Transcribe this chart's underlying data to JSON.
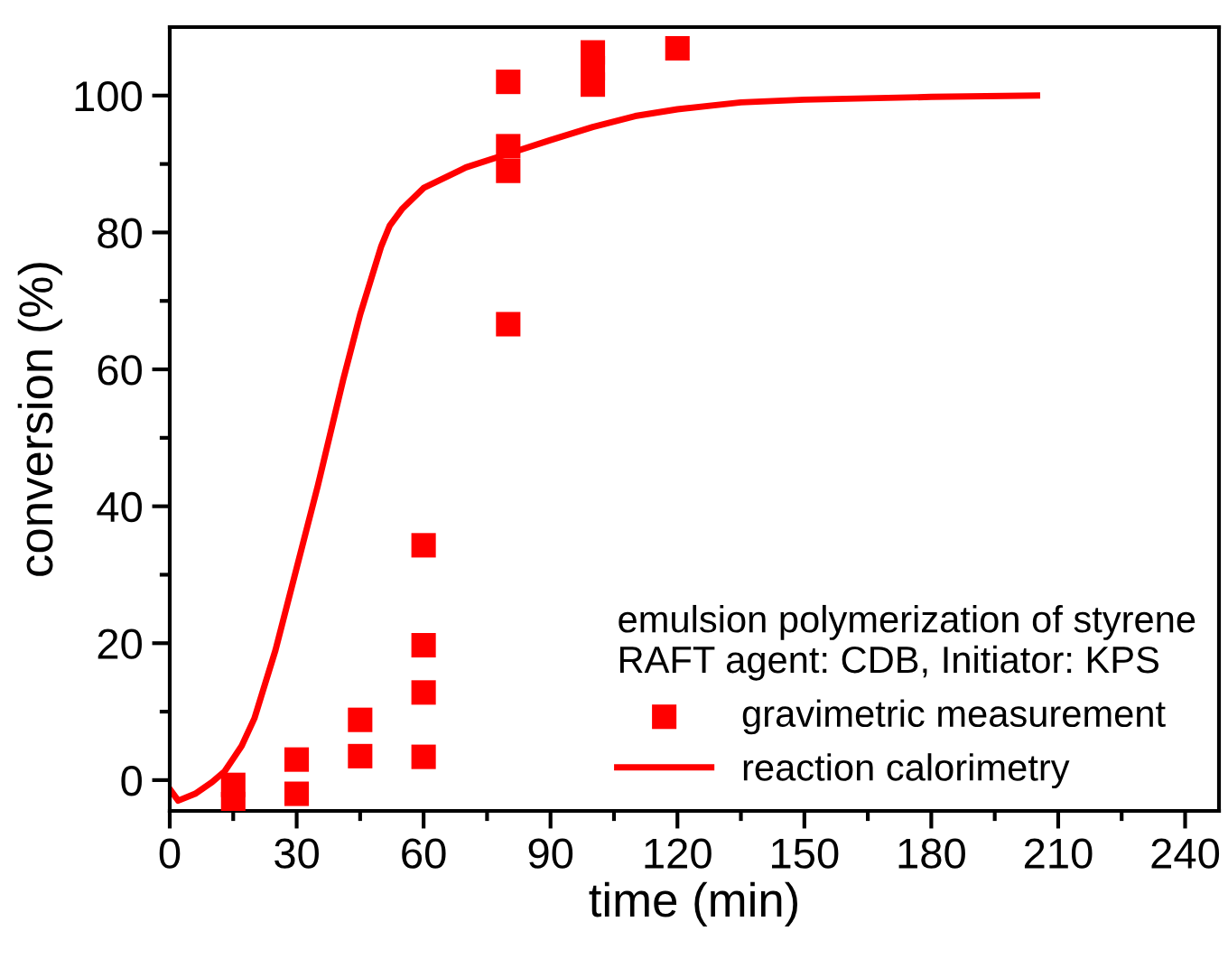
{
  "chart_data": {
    "type": "line",
    "xlabel": "time (min)",
    "ylabel": "conversion (%)",
    "legend_title": "emulsion polymerization of styrene\nRAFT agent: CDB, Initiator: KPS",
    "xlim": [
      0,
      248
    ],
    "xticks": [
      0,
      30,
      60,
      90,
      120,
      150,
      180,
      210,
      240
    ],
    "ylim": [
      -4.5,
      110
    ],
    "yticks": [
      0,
      20,
      40,
      60,
      80,
      100
    ],
    "grid": false,
    "legend": "bottom right",
    "series": [
      {
        "name": "gravimetric measurement",
        "type": "scatter",
        "marker": "square",
        "color": "#ff0000",
        "x": [
          15,
          15,
          30,
          30,
          45,
          45,
          60,
          60,
          60,
          60,
          80,
          80,
          80,
          80,
          100,
          100,
          100,
          120
        ],
        "values": [
          -3.5,
          -0.7,
          -2,
          3,
          3.5,
          8.8,
          3.4,
          12.8,
          19.7,
          34.3,
          66.6,
          89,
          92.6,
          102,
          101.6,
          104,
          106.3,
          106.9
        ]
      },
      {
        "name": "reaction calorimetry",
        "marker": "none",
        "line_style": "solid",
        "color": "#ff0000",
        "x": [
          0,
          2,
          6,
          10,
          13,
          17,
          20,
          25,
          30,
          35,
          41,
          45,
          50,
          52,
          55,
          60,
          70,
          80,
          90,
          100,
          110,
          120,
          135,
          150,
          180,
          205
        ],
        "values": [
          -1.3,
          -3,
          -2,
          -0.3,
          1.3,
          5,
          9,
          19,
          31,
          43,
          58.5,
          68,
          78,
          81,
          83.5,
          86.5,
          89.5,
          91.5,
          93.5,
          95.4,
          97,
          98,
          99,
          99.4,
          99.8,
          100
        ]
      }
    ]
  }
}
